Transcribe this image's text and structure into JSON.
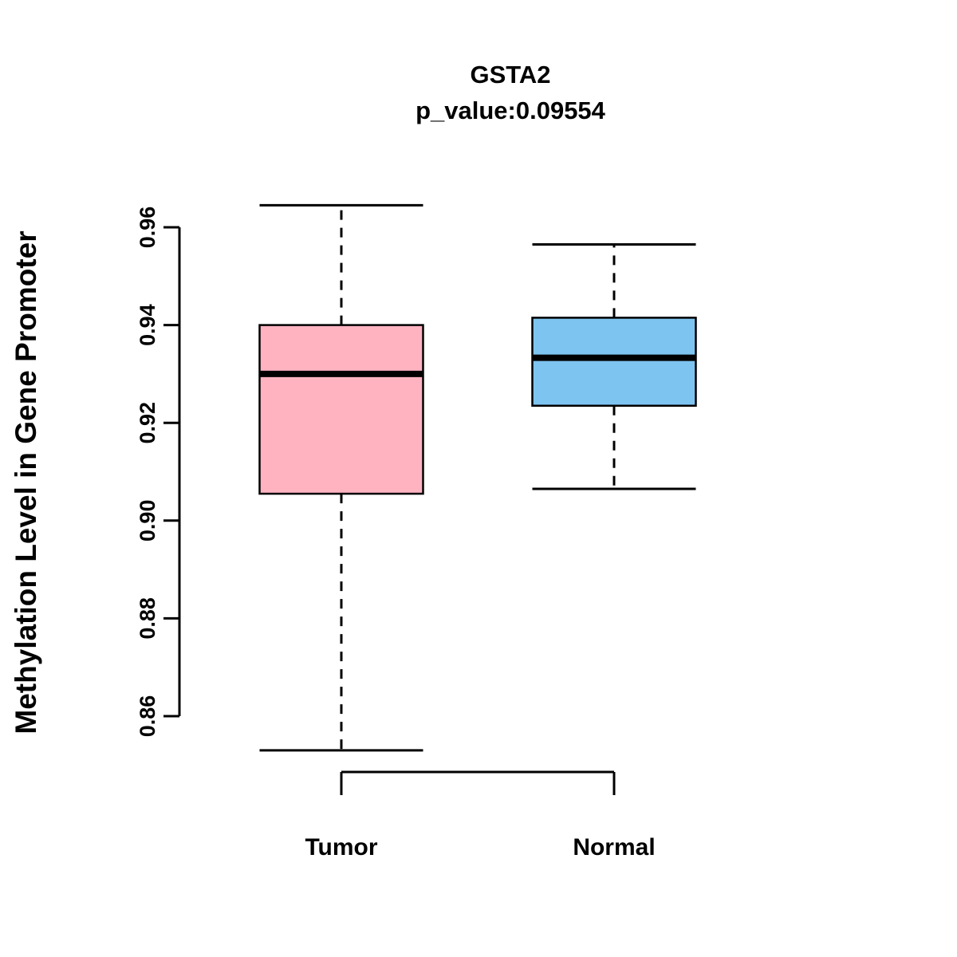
{
  "chart_data": {
    "type": "boxplot",
    "title": "GSTA2",
    "subtitle": "p_value:0.09554",
    "ylabel": "Methylation Level in Gene Promoter",
    "xlabel": "",
    "categories": [
      "Tumor",
      "Normal"
    ],
    "yticks": [
      0.86,
      0.88,
      0.9,
      0.92,
      0.94,
      0.96
    ],
    "ytick_labels": [
      "0.86",
      "0.88",
      "0.90",
      "0.92",
      "0.94",
      "0.96"
    ],
    "ylim": [
      0.85,
      0.966
    ],
    "grid": false,
    "legend": "none",
    "series": [
      {
        "name": "Tumor",
        "box_color": "#FFB3C1",
        "lower_whisker": 0.853,
        "q1": 0.9055,
        "median": 0.93,
        "q3": 0.94,
        "upper_whisker": 0.9645
      },
      {
        "name": "Normal",
        "box_color": "#7EC4F0",
        "lower_whisker": 0.9065,
        "q1": 0.9235,
        "median": 0.9333,
        "q3": 0.9415,
        "upper_whisker": 0.9565
      }
    ],
    "colors": {
      "axis": "#000000",
      "box_border": "#000000",
      "median_line": "#000000",
      "tumor_fill": "#FFB3C1",
      "normal_fill": "#7EC4F0"
    }
  }
}
